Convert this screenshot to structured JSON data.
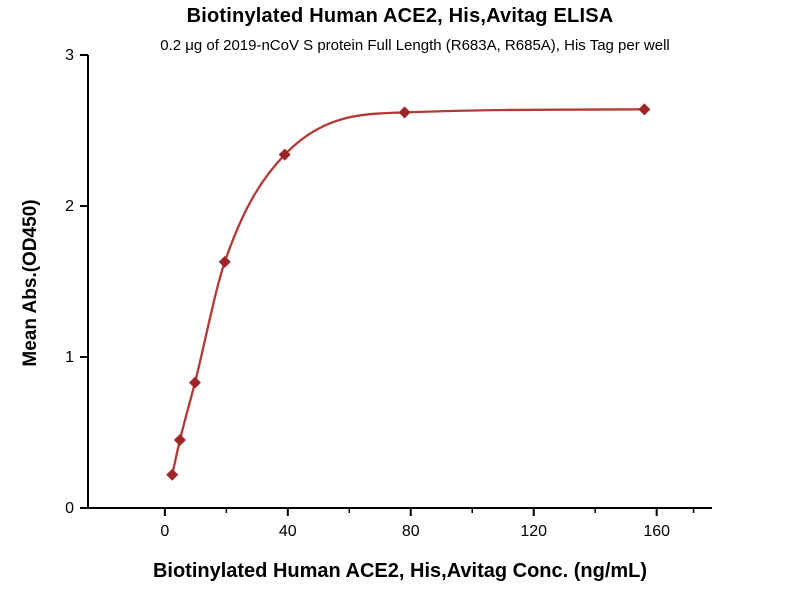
{
  "chart": {
    "title": "Biotinylated Human ACE2, His,Avitag ELISA",
    "subtitle": "0.2 μg of 2019-nCoV S protein Full Length (R683A, R685A), His Tag per well",
    "xlabel": "Biotinylated Human ACE2, His,Avitag Conc. (ng/mL)",
    "ylabel": "Mean Abs.(OD450)"
  },
  "chart_data": {
    "type": "scatter",
    "fit": "4PL sigmoidal dose-response curve through points",
    "series_name": "Biotinylated Human ACE2, His,Avitag",
    "x": [
      2.4,
      4.9,
      9.8,
      19.5,
      39,
      78,
      156
    ],
    "y": [
      0.22,
      0.45,
      0.83,
      1.63,
      2.34,
      2.62,
      2.64
    ],
    "title": "Biotinylated Human ACE2, His,Avitag ELISA",
    "subtitle": "0.2 μg of 2019-nCoV S protein Full Length (R683A, R685A), His Tag per well",
    "xlabel": "Biotinylated Human ACE2, His,Avitag Conc. (ng/mL)",
    "ylabel": "Mean Abs.(OD450)",
    "xlim": [
      -25,
      178
    ],
    "ylim": [
      0,
      3
    ],
    "x_ticks": [
      0,
      40,
      80,
      120,
      160
    ],
    "x_minor_ticks": [
      20,
      60,
      100,
      140,
      172
    ],
    "y_ticks": [
      0,
      1,
      2,
      3
    ],
    "grid": false,
    "legend": "none",
    "line_color": "#b23a36",
    "marker_color": "#9e2528",
    "marker_shape": "diamond",
    "axis_color": "#000000",
    "tick_label_color": "#000000"
  }
}
